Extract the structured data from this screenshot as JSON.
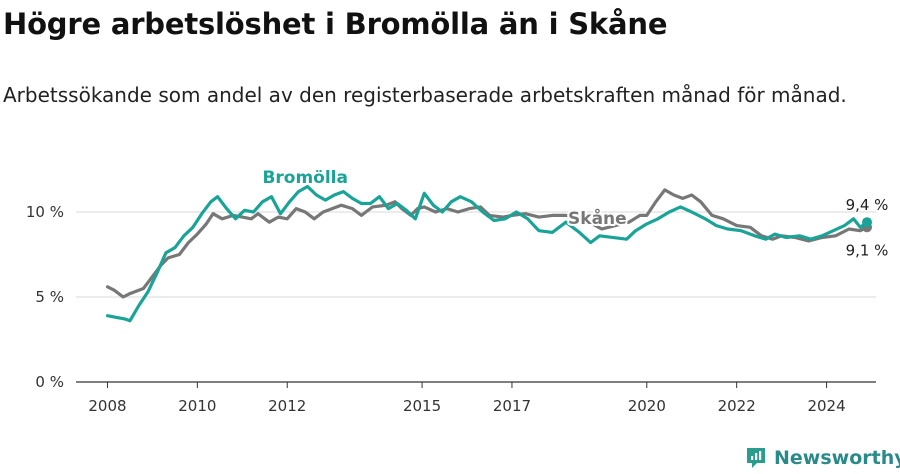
{
  "header": {
    "title": "Högre arbetslöshet i Bromölla än i Skåne",
    "subtitle": "Arbetssökande som andel av den registerbaserade arbetskraften månad för månad."
  },
  "brand": {
    "name": "Newsworthy",
    "icon": "newsworthy-logo-icon",
    "color": "#2a9d8f"
  },
  "chart_data": {
    "type": "line",
    "title": "Högre arbetslöshet i Bromölla än i Skåne",
    "subtitle": "Arbetssökande som andel av den registerbaserade arbetskraften månad för månad.",
    "xlabel": "",
    "ylabel": "",
    "xlim": [
      2008,
      2025
    ],
    "ylim": [
      0,
      12
    ],
    "grid": "horizontal",
    "x_ticks": [
      {
        "value": 2008,
        "label": "2008"
      },
      {
        "value": 2010,
        "label": "2010"
      },
      {
        "value": 2012,
        "label": "2012"
      },
      {
        "value": 2015,
        "label": "2015"
      },
      {
        "value": 2017,
        "label": "2017"
      },
      {
        "value": 2020,
        "label": "2020"
      },
      {
        "value": 2022,
        "label": "2022"
      },
      {
        "value": 2024,
        "label": "2024"
      }
    ],
    "y_ticks": [
      {
        "value": 0,
        "label": "0 %"
      },
      {
        "value": 5,
        "label": "5 %"
      },
      {
        "value": 10,
        "label": "10 %"
      }
    ],
    "series": [
      {
        "name": "Skåne",
        "color": "#777777",
        "label_at": [
          2018.9,
          9.3
        ],
        "end_label": "9,1 %",
        "end_value": 9.1,
        "points": [
          [
            2008.0,
            5.6
          ],
          [
            2008.15,
            5.4
          ],
          [
            2008.35,
            5.0
          ],
          [
            2008.5,
            5.2
          ],
          [
            2008.8,
            5.5
          ],
          [
            2009.0,
            6.2
          ],
          [
            2009.2,
            6.9
          ],
          [
            2009.35,
            7.3
          ],
          [
            2009.6,
            7.5
          ],
          [
            2009.8,
            8.2
          ],
          [
            2010.0,
            8.7
          ],
          [
            2010.2,
            9.3
          ],
          [
            2010.35,
            9.9
          ],
          [
            2010.55,
            9.6
          ],
          [
            2010.8,
            9.8
          ],
          [
            2011.0,
            9.7
          ],
          [
            2011.2,
            9.6
          ],
          [
            2011.35,
            9.9
          ],
          [
            2011.6,
            9.4
          ],
          [
            2011.8,
            9.7
          ],
          [
            2012.0,
            9.6
          ],
          [
            2012.2,
            10.2
          ],
          [
            2012.4,
            10.0
          ],
          [
            2012.6,
            9.6
          ],
          [
            2012.8,
            10.0
          ],
          [
            2013.0,
            10.2
          ],
          [
            2013.2,
            10.4
          ],
          [
            2013.45,
            10.2
          ],
          [
            2013.65,
            9.8
          ],
          [
            2013.9,
            10.3
          ],
          [
            2014.2,
            10.4
          ],
          [
            2014.4,
            10.6
          ],
          [
            2014.55,
            10.2
          ],
          [
            2014.75,
            9.8
          ],
          [
            2014.9,
            10.2
          ],
          [
            2015.05,
            10.3
          ],
          [
            2015.3,
            10.0
          ],
          [
            2015.55,
            10.2
          ],
          [
            2015.8,
            10.0
          ],
          [
            2016.05,
            10.2
          ],
          [
            2016.3,
            10.3
          ],
          [
            2016.5,
            9.8
          ],
          [
            2016.8,
            9.7
          ],
          [
            2017.0,
            9.8
          ],
          [
            2017.3,
            9.9
          ],
          [
            2017.6,
            9.7
          ],
          [
            2017.9,
            9.8
          ],
          [
            2018.2,
            9.8
          ],
          [
            2018.5,
            9.7
          ],
          [
            2019.0,
            9.0
          ],
          [
            2019.3,
            9.2
          ],
          [
            2019.6,
            9.4
          ],
          [
            2019.85,
            9.8
          ],
          [
            2020.0,
            9.8
          ],
          [
            2020.2,
            10.6
          ],
          [
            2020.4,
            11.3
          ],
          [
            2020.6,
            11.0
          ],
          [
            2020.8,
            10.8
          ],
          [
            2021.0,
            11.0
          ],
          [
            2021.2,
            10.6
          ],
          [
            2021.45,
            9.8
          ],
          [
            2021.7,
            9.6
          ],
          [
            2022.0,
            9.2
          ],
          [
            2022.3,
            9.1
          ],
          [
            2022.55,
            8.6
          ],
          [
            2022.8,
            8.4
          ],
          [
            2023.0,
            8.6
          ],
          [
            2023.3,
            8.5
          ],
          [
            2023.6,
            8.3
          ],
          [
            2023.9,
            8.5
          ],
          [
            2024.2,
            8.6
          ],
          [
            2024.5,
            9.0
          ],
          [
            2024.75,
            8.9
          ],
          [
            2024.9,
            9.1
          ]
        ]
      },
      {
        "name": "Bromölla",
        "color": "#1aa397",
        "label_at": [
          2012.4,
          11.7
        ],
        "end_label": "9,4 %",
        "end_value": 9.4,
        "points": [
          [
            2008.0,
            3.9
          ],
          [
            2008.2,
            3.8
          ],
          [
            2008.4,
            3.7
          ],
          [
            2008.5,
            3.6
          ],
          [
            2008.7,
            4.5
          ],
          [
            2008.9,
            5.3
          ],
          [
            2009.1,
            6.4
          ],
          [
            2009.3,
            7.6
          ],
          [
            2009.5,
            7.9
          ],
          [
            2009.7,
            8.6
          ],
          [
            2009.9,
            9.1
          ],
          [
            2010.1,
            9.9
          ],
          [
            2010.3,
            10.6
          ],
          [
            2010.45,
            10.9
          ],
          [
            2010.65,
            10.2
          ],
          [
            2010.85,
            9.6
          ],
          [
            2011.05,
            10.1
          ],
          [
            2011.25,
            10.0
          ],
          [
            2011.45,
            10.6
          ],
          [
            2011.65,
            10.9
          ],
          [
            2011.85,
            9.9
          ],
          [
            2012.05,
            10.6
          ],
          [
            2012.25,
            11.2
          ],
          [
            2012.45,
            11.5
          ],
          [
            2012.65,
            11.0
          ],
          [
            2012.85,
            10.7
          ],
          [
            2013.05,
            11.0
          ],
          [
            2013.25,
            11.2
          ],
          [
            2013.45,
            10.8
          ],
          [
            2013.65,
            10.5
          ],
          [
            2013.85,
            10.5
          ],
          [
            2014.05,
            10.9
          ],
          [
            2014.25,
            10.2
          ],
          [
            2014.45,
            10.5
          ],
          [
            2014.65,
            10.1
          ],
          [
            2014.85,
            9.6
          ],
          [
            2015.05,
            11.1
          ],
          [
            2015.25,
            10.4
          ],
          [
            2015.45,
            10.0
          ],
          [
            2015.65,
            10.6
          ],
          [
            2015.85,
            10.9
          ],
          [
            2016.1,
            10.6
          ],
          [
            2016.35,
            10.0
          ],
          [
            2016.6,
            9.5
          ],
          [
            2016.85,
            9.6
          ],
          [
            2017.1,
            10.0
          ],
          [
            2017.35,
            9.6
          ],
          [
            2017.6,
            8.9
          ],
          [
            2017.9,
            8.8
          ],
          [
            2018.2,
            9.4
          ],
          [
            2018.5,
            8.8
          ],
          [
            2018.75,
            8.2
          ],
          [
            2018.95,
            8.6
          ],
          [
            2019.55,
            8.4
          ],
          [
            2019.75,
            8.9
          ],
          [
            2020.0,
            9.3
          ],
          [
            2020.25,
            9.6
          ],
          [
            2020.5,
            10.0
          ],
          [
            2020.75,
            10.3
          ],
          [
            2021.0,
            10.0
          ],
          [
            2021.3,
            9.6
          ],
          [
            2021.55,
            9.2
          ],
          [
            2021.8,
            9.0
          ],
          [
            2022.1,
            8.9
          ],
          [
            2022.4,
            8.6
          ],
          [
            2022.65,
            8.4
          ],
          [
            2022.85,
            8.7
          ],
          [
            2023.1,
            8.5
          ],
          [
            2023.4,
            8.6
          ],
          [
            2023.65,
            8.4
          ],
          [
            2023.9,
            8.6
          ],
          [
            2024.15,
            8.9
          ],
          [
            2024.4,
            9.2
          ],
          [
            2024.6,
            9.6
          ],
          [
            2024.75,
            9.1
          ],
          [
            2024.9,
            9.4
          ]
        ]
      }
    ]
  }
}
